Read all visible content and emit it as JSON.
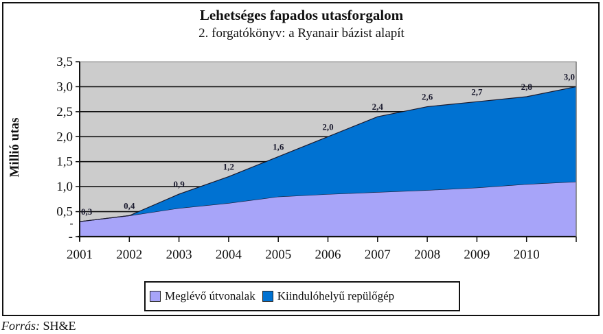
{
  "chart_data": {
    "type": "area",
    "stacked": true,
    "title": "Lehetséges fapados utasforgalom",
    "subtitle": "2. forgatókönyv: a Ryanair bázist alapít",
    "xlabel": "",
    "ylabel": "Millió utas",
    "x": [
      "2001",
      "2002",
      "2003",
      "2004",
      "2005",
      "2006",
      "2007",
      "2008",
      "2009",
      "2010",
      ""
    ],
    "x_tick_labels": [
      "2001",
      "2002",
      "2003",
      "2004",
      "2005",
      "2006",
      "2007",
      "2008",
      "2009",
      "2010"
    ],
    "ylim": [
      0,
      3.5
    ],
    "y_ticks": [
      "3,5",
      "3,0",
      "2,5",
      "2,0",
      "1,5",
      "1,0",
      "0,5",
      "-"
    ],
    "y_tick_values": [
      3.5,
      3.0,
      2.5,
      2.0,
      1.5,
      1.0,
      0.5,
      0
    ],
    "grid": true,
    "series": [
      {
        "name": "Meglévő útvonalak",
        "color": "#a7a4f9",
        "values": [
          0.3,
          0.42,
          0.57,
          0.67,
          0.8,
          0.85,
          0.89,
          0.93,
          0.98,
          1.05,
          1.1
        ]
      },
      {
        "name": "Kiindulóhelyű repülőgép",
        "color": "#0072d2",
        "values": [
          0.0,
          0.0,
          0.28,
          0.53,
          0.8,
          1.15,
          1.51,
          1.67,
          1.72,
          1.75,
          1.9
        ]
      }
    ],
    "totals": [
      0.3,
      0.42,
      0.85,
      1.2,
      1.6,
      2.0,
      2.4,
      2.6,
      2.7,
      2.8,
      3.0
    ],
    "total_labels": [
      "0,3",
      "0,4",
      "0,9",
      "1,2",
      "1,6",
      "2,0",
      "2,4",
      "2,6",
      "2,7",
      "2,8",
      "3,0"
    ],
    "legend_position": "bottom",
    "plot_background": "#cccccc"
  },
  "source": {
    "label": "Forrás:",
    "value": "SH&E"
  }
}
